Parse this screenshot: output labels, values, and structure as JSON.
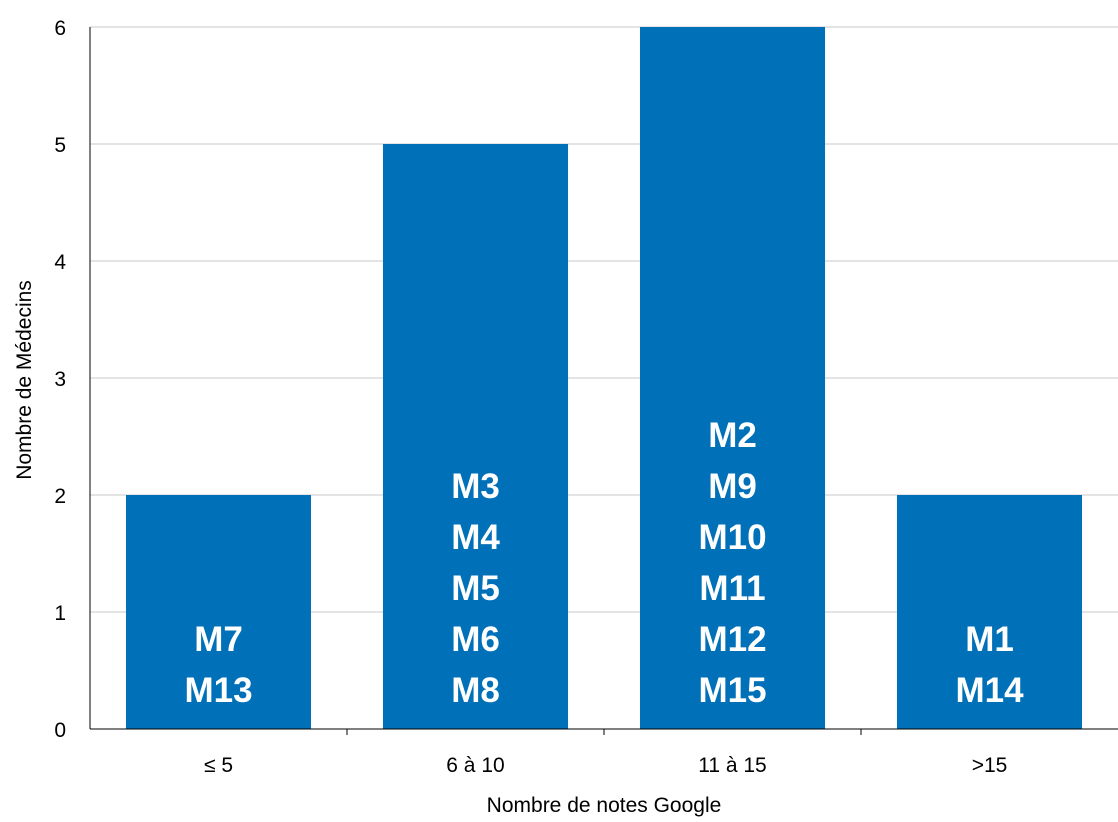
{
  "chart_data": {
    "type": "bar",
    "title": "",
    "xlabel": "Nombre de notes Google",
    "ylabel": "Nombre de Médecins",
    "categories": [
      "≤ 5",
      "6 à 10",
      "11 à 15",
      ">15"
    ],
    "values": [
      2,
      5,
      6,
      2
    ],
    "bar_labels": [
      [
        "M7",
        "M13"
      ],
      [
        "M3",
        "M4",
        "M5",
        "M6",
        "M8"
      ],
      [
        "M2",
        "M9",
        "M10",
        "M11",
        "M12",
        "M15"
      ],
      [
        "M1",
        "M14"
      ]
    ],
    "ylim": [
      0,
      6
    ],
    "yticks": [
      0,
      1,
      2,
      3,
      4,
      5,
      6
    ],
    "grid": "horizontal",
    "colors": {
      "bar": "#0071b8",
      "grid": "#c8c8c8",
      "axis": "#000000"
    }
  }
}
